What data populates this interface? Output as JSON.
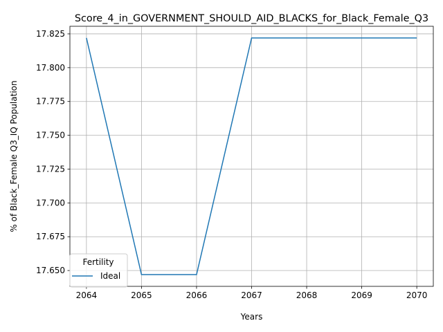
{
  "chart_data": {
    "type": "line",
    "title": "Score_4_in_GOVERNMENT_SHOULD_AID_BLACKS_for_Black_Female_Q3",
    "xlabel": "Years",
    "ylabel": "% of Black_Female Q3_IQ Population",
    "x": [
      2064,
      2065,
      2066,
      2067,
      2068,
      2069,
      2070
    ],
    "xlim": [
      2063.7,
      2070.3
    ],
    "ylim": [
      17.6383,
      17.8306
    ],
    "xticks": [
      2064,
      2065,
      2066,
      2067,
      2068,
      2069,
      2070
    ],
    "yticks": [
      17.65,
      17.675,
      17.7,
      17.725,
      17.75,
      17.775,
      17.8,
      17.825
    ],
    "ytick_labels": [
      "17.650",
      "17.675",
      "17.700",
      "17.725",
      "17.750",
      "17.775",
      "17.800",
      "17.825"
    ],
    "grid": true,
    "legend": {
      "title": "Fertility",
      "placement": "lower left"
    },
    "series": [
      {
        "name": "Ideal",
        "color": "#1f77b4",
        "values": [
          17.822,
          17.647,
          17.647,
          17.822,
          17.822,
          17.822,
          17.822
        ]
      }
    ]
  }
}
